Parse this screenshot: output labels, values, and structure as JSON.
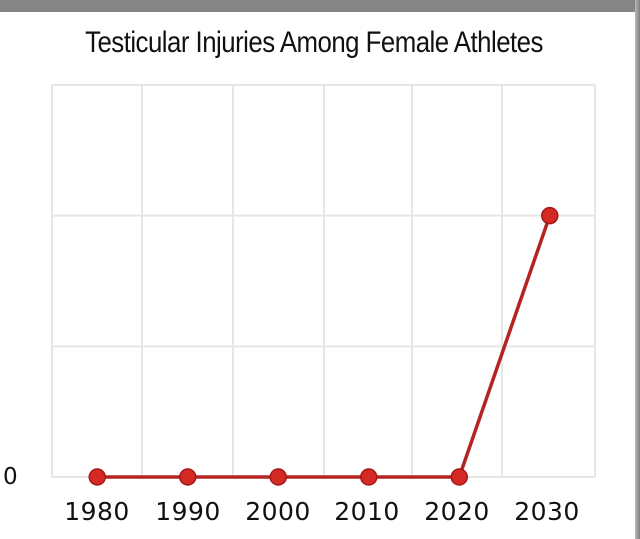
{
  "chart_data": {
    "type": "line",
    "title": "Testicular Injuries Among Female Athletes",
    "xlabel": "",
    "ylabel": "",
    "categories": [
      "1980",
      "1990",
      "2000",
      "2010",
      "2020",
      "2030"
    ],
    "series": [
      {
        "name": "Testicular Injuries",
        "values": [
          0,
          0,
          0,
          0,
          0,
          2
        ]
      }
    ],
    "y_tick_labels": [
      "0"
    ],
    "ylim": [
      0,
      3
    ],
    "grid": true,
    "legend": "none",
    "colors": {
      "line": "#b52323",
      "marker_fill": "#d42a24",
      "marker_edge": "#a51818",
      "grid": "#e6e6e6"
    }
  },
  "header": {
    "title": "Testicular Injuries Among Female Athletes"
  },
  "axes": {
    "y_zero_label": "0",
    "x_labels": [
      "1980",
      "1990",
      "2000",
      "2010",
      "2020",
      "2030"
    ]
  }
}
